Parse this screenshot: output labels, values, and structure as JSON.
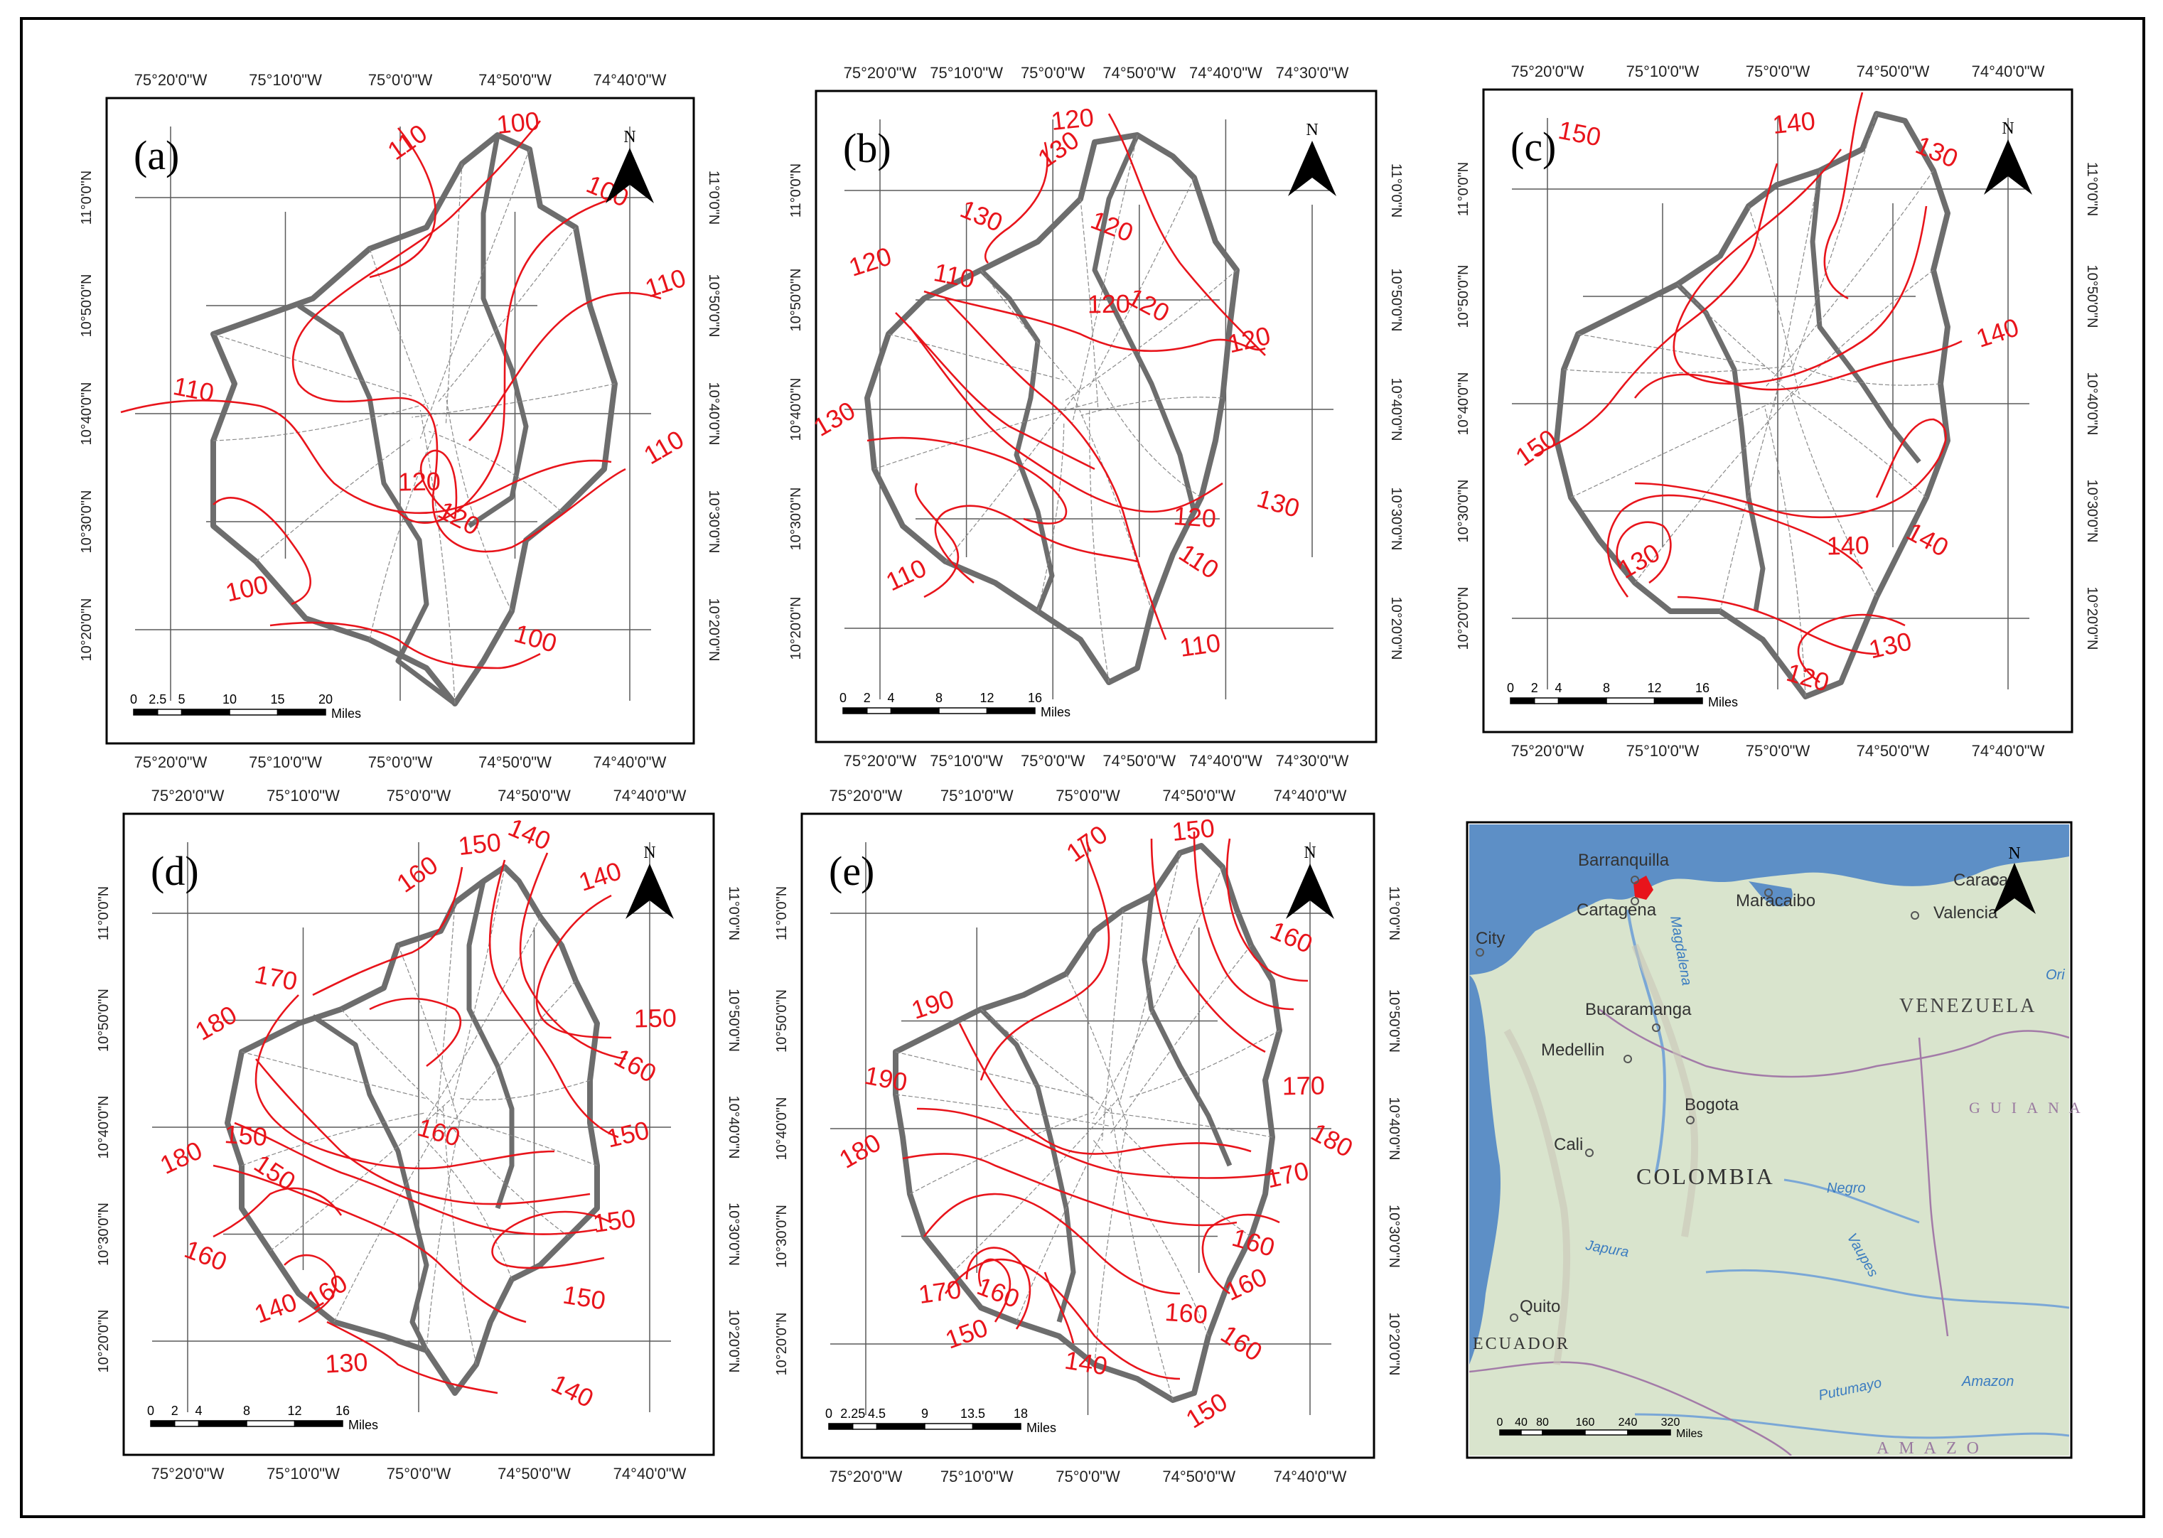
{
  "panels": [
    {
      "id": "a",
      "label": "(a)",
      "north": "N",
      "lon_top": [
        "75°20'0\"W",
        "75°10'0\"W",
        "75°0'0\"W",
        "74°50'0\"W",
        "74°40'0\"W"
      ],
      "lon_bottom": [
        "75°20'0\"W",
        "75°10'0\"W",
        "75°0'0\"W",
        "74°50'0\"W",
        "74°40'0\"W"
      ],
      "lat_left": [
        "11°0'0\"N",
        "10°50'0\"N",
        "10°40'0\"N",
        "10°30'0\"N",
        "10°20'0\"N"
      ],
      "lat_right": [
        "11°0'0\"N",
        "10°50'0\"N",
        "10°40'0\"N",
        "10°30'0\"N",
        "10°20'0\"N"
      ],
      "scale_ticks": [
        "0",
        "2.5",
        "5",
        "10",
        "15",
        "20"
      ],
      "scale_unit": "Miles",
      "contour_labels": [
        "110",
        "100",
        "100",
        "110",
        "110",
        "110",
        "120",
        "120",
        "100",
        "100"
      ]
    },
    {
      "id": "b",
      "label": "(b)",
      "north": "N",
      "lon_top": [
        "75°20'0\"W",
        "75°10'0\"W",
        "75°0'0\"W",
        "74°50'0\"W",
        "74°40'0\"W",
        "74°30'0\"W"
      ],
      "lon_bottom": [
        "75°20'0\"W",
        "75°10'0\"W",
        "75°0'0\"W",
        "74°50'0\"W",
        "74°40'0\"W",
        "74°30'0\"W"
      ],
      "lat_left": [
        "11°0'0\"N",
        "10°50'0\"N",
        "10°40'0\"N",
        "10°30'0\"N",
        "10°20'0\"N"
      ],
      "lat_right": [
        "11°0'0\"N",
        "10°50'0\"N",
        "10°40'0\"N",
        "10°30'0\"N",
        "10°20'0\"N"
      ],
      "scale_ticks": [
        "0",
        "2",
        "4",
        "8",
        "12",
        "16"
      ],
      "scale_unit": "Miles",
      "contour_labels": [
        "130",
        "120",
        "130",
        "120",
        "110",
        "130",
        "120",
        "120",
        "120",
        "130",
        "110",
        "120",
        "110",
        "110",
        "120"
      ]
    },
    {
      "id": "c",
      "label": "(c)",
      "north": "N",
      "lon_top": [
        "75°20'0\"W",
        "75°10'0\"W",
        "75°0'0\"W",
        "74°50'0\"W",
        "74°40'0\"W"
      ],
      "lon_bottom": [
        "75°20'0\"W",
        "75°10'0\"W",
        "75°0'0\"W",
        "74°50'0\"W",
        "74°40'0\"W"
      ],
      "lat_left": [
        "11°0'0\"N",
        "10°50'0\"N",
        "10°40'0\"N",
        "10°30'0\"N",
        "10°20'0\"N"
      ],
      "lat_right": [
        "11°0'0\"N",
        "10°50'0\"N",
        "10°40'0\"N",
        "10°30'0\"N",
        "10°20'0\"N"
      ],
      "scale_ticks": [
        "0",
        "2",
        "4",
        "8",
        "12",
        "16"
      ],
      "scale_unit": "Miles",
      "contour_labels": [
        "150",
        "140",
        "130",
        "140",
        "150",
        "130",
        "140",
        "140",
        "130",
        "120"
      ]
    },
    {
      "id": "d",
      "label": "(d)",
      "north": "N",
      "lon_top": [
        "75°20'0\"W",
        "75°10'0\"W",
        "75°0'0\"W",
        "74°50'0\"W",
        "74°40'0\"W"
      ],
      "lon_bottom": [
        "75°20'0\"W",
        "75°10'0\"W",
        "75°0'0\"W",
        "74°50'0\"W",
        "74°40'0\"W"
      ],
      "lat_left": [
        "11°0'0\"N",
        "10°50'0\"N",
        "10°40'0\"N",
        "10°30'0\"N",
        "10°20'0\"N"
      ],
      "lat_right": [
        "11°0'0\"N",
        "10°50'0\"N",
        "10°40'0\"N",
        "10°30'0\"N",
        "10°20'0\"N"
      ],
      "scale_ticks": [
        "0",
        "2",
        "4",
        "8",
        "12",
        "16"
      ],
      "scale_unit": "Miles",
      "contour_labels": [
        "160",
        "150",
        "140",
        "140",
        "170",
        "180",
        "150",
        "160",
        "150",
        "160",
        "180",
        "150",
        "150",
        "150",
        "160",
        "140",
        "150",
        "160",
        "130",
        "140"
      ]
    },
    {
      "id": "e",
      "label": "(e)",
      "north": "N",
      "lon_top": [
        "75°20'0\"W",
        "75°10'0\"W",
        "75°0'0\"W",
        "74°50'0\"W",
        "74°40'0\"W"
      ],
      "lon_bottom": [
        "75°20'0\"W",
        "75°10'0\"W",
        "75°0'0\"W",
        "74°50'0\"W",
        "74°40'0\"W"
      ],
      "lat_left": [
        "11°0'0\"N",
        "10°50'0\"N",
        "10°40'0\"N",
        "10°30'0\"N",
        "10°20'0\"N"
      ],
      "lat_right": [
        "11°0'0\"N",
        "10°50'0\"N",
        "10°40'0\"N",
        "10°30'0\"N",
        "10°20'0\"N"
      ],
      "scale_ticks": [
        "0",
        "2.25",
        "4.5",
        "9",
        "13.5",
        "18"
      ],
      "scale_unit": "Miles",
      "contour_labels": [
        "170",
        "150",
        "160",
        "190",
        "190",
        "180",
        "170",
        "180",
        "170",
        "160",
        "160",
        "160",
        "160",
        "170",
        "160",
        "150",
        "140",
        "150"
      ]
    }
  ],
  "locator": {
    "north": "N",
    "cities": [
      "Barranquilla",
      "Cartagena",
      "Maracaibo",
      "Caracas",
      "Valencia",
      "City",
      "Bucaramanga",
      "Medellin",
      "Bogota",
      "Cali",
      "Quito"
    ],
    "countries": [
      "VENEZUELA",
      "COLOMBIA",
      "ECUADOR",
      "GUIANA",
      "AMAZO"
    ],
    "rivers": [
      "Magdalena",
      "Negro",
      "Japura",
      "Vaupes",
      "Putumayo",
      "Amazon",
      "Ori"
    ],
    "scale_ticks": [
      "0",
      "40",
      "80",
      "160",
      "240",
      "320"
    ],
    "scale_unit": "Miles"
  },
  "colors": {
    "contour": "#e8141b",
    "basin_outline": "#6d6d6d",
    "grid": "#5a5a5a",
    "frame": "#000000",
    "locator_ocean": "#5b8fc9",
    "locator_land": "#d8e3cc",
    "study_area": "#e8141b"
  }
}
